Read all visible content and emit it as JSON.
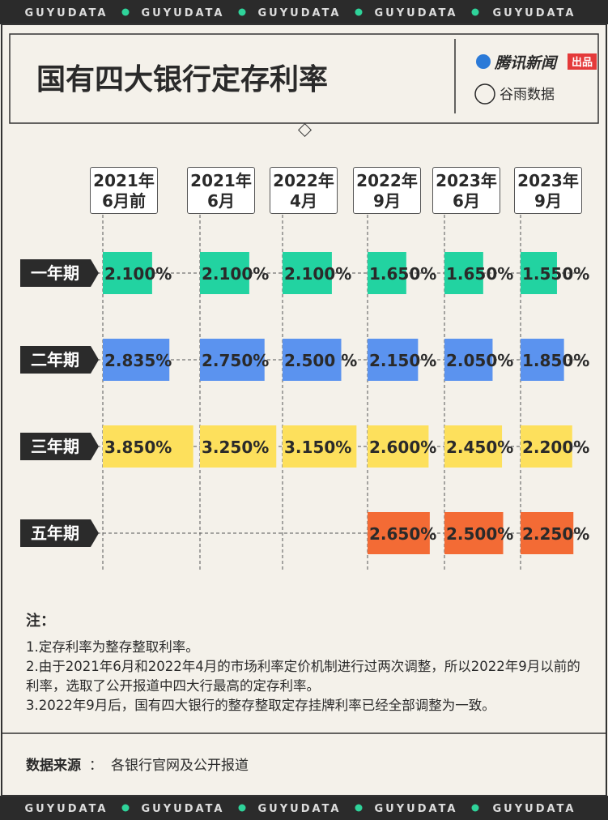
{
  "banner": "GUYUDATA",
  "brand": {
    "name": "腾讯新闻",
    "tag": "出品",
    "partner": "谷雨数据"
  },
  "chart_data": {
    "type": "bar",
    "title": "国有四大银行定存利率",
    "categories": [
      "2021年\n6月前",
      "2021年\n6月",
      "2022年\n4月",
      "2022年\n9月",
      "2023年\n6月",
      "2023年\n9月"
    ],
    "series": [
      {
        "name": "一年期",
        "color": "#22d3a1",
        "values": [
          2.1,
          2.1,
          2.1,
          1.65,
          1.65,
          1.55
        ],
        "value_labels": [
          "2.100%",
          "2.100%",
          "2.100%",
          "1.650%",
          "1.650%",
          "1.550%"
        ]
      },
      {
        "name": "二年期",
        "color": "#5b93ef",
        "values": [
          2.835,
          2.75,
          2.5,
          2.15,
          2.05,
          1.85
        ],
        "value_labels": [
          "2.835%",
          "2.750%",
          "2.500 %",
          "2.150%",
          "2.050%",
          "1.850%"
        ]
      },
      {
        "name": "三年期",
        "color": "#fde05c",
        "values": [
          3.85,
          3.25,
          3.15,
          2.6,
          2.45,
          2.2
        ],
        "value_labels": [
          "3.850%",
          "3.250%",
          "3.150%",
          "2.600%",
          "2.450%",
          "2.200%"
        ]
      },
      {
        "name": "五年期",
        "color": "#f36b35",
        "values": [
          null,
          null,
          null,
          2.65,
          2.5,
          2.25
        ],
        "value_labels": [
          null,
          null,
          null,
          "2.650%",
          "2.500%",
          "2.250%"
        ]
      }
    ]
  },
  "notes": {
    "heading": "注：",
    "items": [
      "1.定存利率为整存整取利率。",
      "2.由于2021年6月和2022年4月的市场利率定价机制进行过两次调整，所以2022年9月以前的利率，选取了公开报道中四大行最高的定存利率。",
      "3.2022年9月后，国有四大银行的整存整取定存挂牌利率已经全部调整为一致。"
    ]
  },
  "source": {
    "label": "数据来源",
    "separator": "：",
    "text": "各银行官网及公开报道"
  }
}
